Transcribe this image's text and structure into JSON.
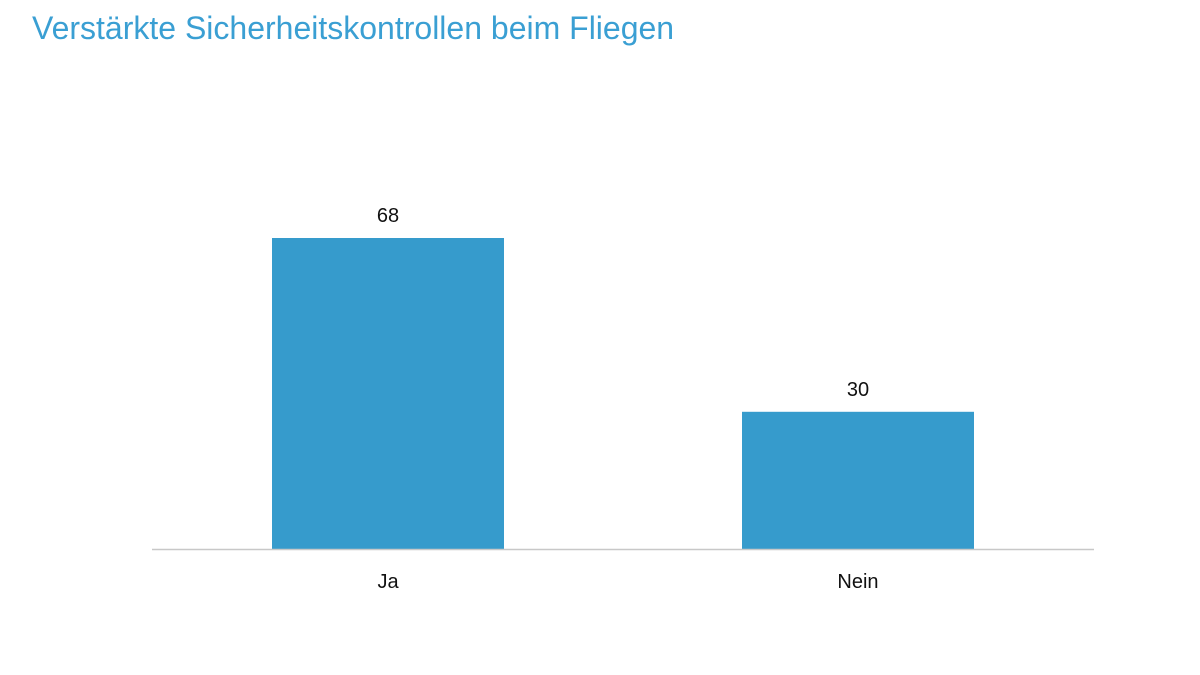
{
  "chart_data": {
    "type": "bar",
    "title": "Verstärkte Sicherheitskontrollen beim Fliegen",
    "categories": [
      "Ja",
      "Nein"
    ],
    "values": [
      68,
      30
    ],
    "data_labels": [
      "68",
      "30"
    ],
    "xlabel": "",
    "ylabel": "",
    "ylim": [
      0,
      100
    ],
    "grid": false,
    "legend": "none",
    "bar_color": "#369bcc",
    "title_color": "#3a9fd3"
  }
}
